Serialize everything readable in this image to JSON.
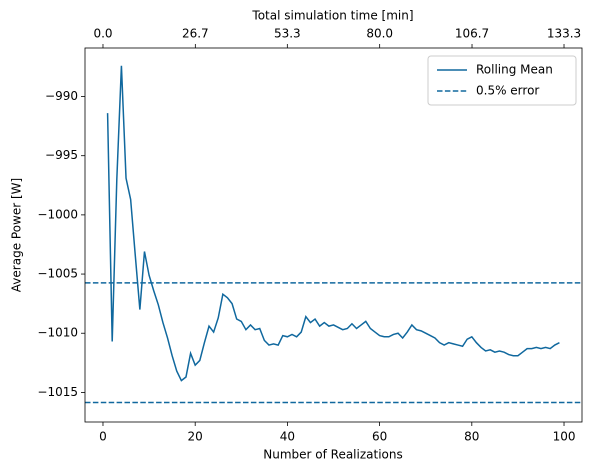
{
  "chart_data": {
    "type": "line",
    "x_label": "Number of Realizations",
    "y_label": "Average Power [W]",
    "x2_label": "Total simulation time [min]",
    "xlim": [
      -3.9,
      103.9
    ],
    "xticks": [
      0,
      20,
      40,
      60,
      80,
      100
    ],
    "x2lim": [
      -5.2,
      138.5
    ],
    "x2ticks": [
      {
        "value": 0,
        "label": "0.0"
      },
      26.7,
      53.3,
      {
        "value": 80,
        "label": "80.0"
      },
      106.7,
      133.3
    ],
    "ylim": [
      -1017.5,
      -985.9
    ],
    "yticks": [
      {
        "value": -1015,
        "label": "−1015"
      },
      {
        "value": -1010,
        "label": "−1010"
      },
      {
        "value": -1005,
        "label": "−1005"
      },
      {
        "value": -1000,
        "label": "−1000"
      },
      {
        "value": -995,
        "label": "−995"
      },
      {
        "value": -990,
        "label": "−990"
      }
    ],
    "legend": "upper right",
    "x": [
      1,
      2,
      3,
      4,
      5,
      6,
      7,
      8,
      9,
      10,
      11,
      12,
      13,
      14,
      15,
      16,
      17,
      18,
      19,
      20,
      21,
      22,
      23,
      24,
      25,
      26,
      27,
      28,
      29,
      30,
      31,
      32,
      33,
      34,
      35,
      36,
      37,
      38,
      39,
      40,
      41,
      42,
      43,
      44,
      45,
      46,
      47,
      48,
      49,
      50,
      51,
      52,
      53,
      54,
      55,
      56,
      57,
      58,
      59,
      60,
      61,
      62,
      63,
      64,
      65,
      66,
      67,
      68,
      69,
      70,
      71,
      72,
      73,
      74,
      75,
      76,
      77,
      78,
      79,
      80,
      81,
      82,
      83,
      84,
      85,
      86,
      87,
      88,
      89,
      90,
      91,
      92,
      93,
      94,
      95,
      96,
      97,
      98,
      99
    ],
    "series": [
      {
        "name": "Rolling Mean",
        "color": "#10689e",
        "values": [
          -991.4,
          -1010.7,
          -997.0,
          -987.4,
          -996.9,
          -998.7,
          -1003.4,
          -1008.0,
          -1003.1,
          -1005.1,
          -1006.4,
          -1007.6,
          -1009.1,
          -1010.4,
          -1011.9,
          -1013.2,
          -1014.0,
          -1013.7,
          -1011.7,
          -1012.7,
          -1012.3,
          -1010.8,
          -1009.4,
          -1009.9,
          -1008.7,
          -1006.7,
          -1007.0,
          -1007.5,
          -1008.8,
          -1009.0,
          -1009.7,
          -1009.3,
          -1009.7,
          -1009.6,
          -1010.6,
          -1011.0,
          -1010.9,
          -1011.0,
          -1010.2,
          -1010.3,
          -1010.1,
          -1010.3,
          -1009.9,
          -1008.6,
          -1009.1,
          -1008.8,
          -1009.4,
          -1009.1,
          -1009.4,
          -1009.3,
          -1009.5,
          -1009.7,
          -1009.6,
          -1009.2,
          -1009.6,
          -1009.3,
          -1009.0,
          -1009.6,
          -1009.9,
          -1010.2,
          -1010.3,
          -1010.3,
          -1010.1,
          -1010.0,
          -1010.4,
          -1009.9,
          -1009.3,
          -1009.7,
          -1009.8,
          -1010.0,
          -1010.2,
          -1010.4,
          -1010.8,
          -1011.0,
          -1010.8,
          -1010.9,
          -1011.0,
          -1011.1,
          -1010.5,
          -1010.3,
          -1010.8,
          -1011.2,
          -1011.5,
          -1011.4,
          -1011.6,
          -1011.5,
          -1011.6,
          -1011.8,
          -1011.9,
          -1011.9,
          -1011.6,
          -1011.3,
          -1011.3,
          -1011.2,
          -1011.3,
          -1011.2,
          -1011.3,
          -1011.0,
          -1010.8
        ]
      }
    ],
    "hlines": {
      "name": "0.5% error",
      "color": "#10689e",
      "values": [
        -1005.75,
        -1015.85
      ]
    }
  }
}
